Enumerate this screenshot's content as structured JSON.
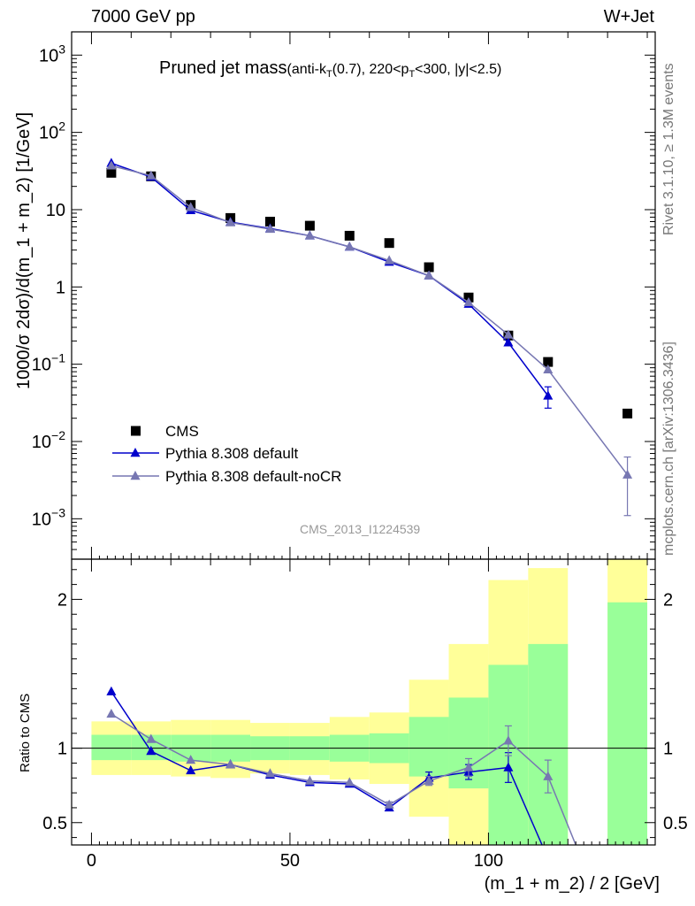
{
  "header": {
    "left": "7000 GeV pp",
    "right": "W+Jet"
  },
  "side": {
    "rivet": "Rivet 3.1.10, ≥ 1.3M events",
    "mcplots": "mcplots.cern.ch [arXiv:1306.3436]"
  },
  "chart_data": [
    {
      "type": "scatter",
      "title_main": "Pruned jet mass",
      "title_sub": "(anti-k_T(0.7), 220<p_T<300, |y|<2.5)",
      "watermark": "CMS_2013_I1224539",
      "ylabel": "1000/σ 2dσ)/d(m_1 + m_2) [1/GeV]",
      "yscale": "log",
      "ylim": [
        0.0003,
        2000
      ],
      "xlim": [
        -5,
        142
      ],
      "ytick_labels": [
        {
          "mant": "10",
          "exp": "3",
          "v": 1000
        },
        {
          "mant": "10",
          "exp": "2",
          "v": 100
        },
        {
          "mant": "10",
          "exp": "",
          "v": 10
        },
        {
          "mant": "1",
          "exp": "",
          "v": 1
        },
        {
          "mant": "10",
          "exp": "−1",
          "v": 0.1
        },
        {
          "mant": "10",
          "exp": "−2",
          "v": 0.01
        },
        {
          "mant": "10",
          "exp": "−3",
          "v": 0.001
        }
      ],
      "legend_position": "bottom-left",
      "series": [
        {
          "name": "CMS",
          "color": "#000000",
          "marker": "square",
          "x": [
            5,
            15,
            25,
            35,
            45,
            55,
            65,
            75,
            85,
            95,
            105,
            115,
            135
          ],
          "y": [
            30,
            27,
            11.5,
            7.8,
            7.0,
            6.2,
            4.6,
            3.7,
            1.8,
            0.73,
            0.235,
            0.107,
            0.023
          ]
        },
        {
          "name": "Pythia 8.308 default",
          "color": "#0000cc",
          "marker": "triangle",
          "x": [
            5,
            15,
            25,
            35,
            45,
            55,
            65,
            75,
            85,
            95,
            105,
            115
          ],
          "y": [
            40,
            26.5,
            9.8,
            6.9,
            5.7,
            4.6,
            3.3,
            2.1,
            1.4,
            0.6,
            0.19,
            0.039
          ],
          "yerr": [
            0,
            0,
            0,
            0,
            0,
            0,
            0,
            0,
            0,
            0,
            0,
            0.012
          ]
        },
        {
          "name": "Pythia 8.308 default-noCR",
          "color": "#7777b2",
          "marker": "triangle",
          "x": [
            5,
            15,
            25,
            35,
            45,
            55,
            65,
            75,
            85,
            95,
            105,
            115,
            135
          ],
          "y": [
            37,
            27.5,
            10.7,
            6.8,
            5.6,
            4.6,
            3.3,
            2.2,
            1.4,
            0.63,
            0.24,
            0.085,
            0.0037
          ],
          "yerr": [
            0,
            0,
            0,
            0,
            0,
            0,
            0,
            0,
            0,
            0,
            0,
            0,
            0.0026
          ]
        }
      ]
    },
    {
      "type": "scatter",
      "ylabel": "Ratio to CMS",
      "xlabel": "(m_1 + m_2) / 2 [GeV]",
      "xlim": [
        -5,
        142
      ],
      "ylim": [
        0.35,
        2.27
      ],
      "xticks": [
        0,
        50,
        100
      ],
      "yticks": [
        0.5,
        1,
        2
      ],
      "reference": 1,
      "bands": [
        {
          "x0": 0,
          "x1": 10,
          "g_lo": 0.92,
          "g_hi": 1.09,
          "y_lo": 0.82,
          "y_hi": 1.18
        },
        {
          "x0": 10,
          "x1": 20,
          "g_lo": 0.92,
          "g_hi": 1.09,
          "y_lo": 0.82,
          "y_hi": 1.18
        },
        {
          "x0": 20,
          "x1": 30,
          "g_lo": 0.91,
          "g_hi": 1.09,
          "y_lo": 0.81,
          "y_hi": 1.19
        },
        {
          "x0": 30,
          "x1": 40,
          "g_lo": 0.91,
          "g_hi": 1.09,
          "y_lo": 0.8,
          "y_hi": 1.19
        },
        {
          "x0": 40,
          "x1": 50,
          "g_lo": 0.92,
          "g_hi": 1.08,
          "y_lo": 0.83,
          "y_hi": 1.17
        },
        {
          "x0": 50,
          "x1": 60,
          "g_lo": 0.92,
          "g_hi": 1.08,
          "y_lo": 0.82,
          "y_hi": 1.17
        },
        {
          "x0": 60,
          "x1": 70,
          "g_lo": 0.91,
          "g_hi": 1.09,
          "y_lo": 0.79,
          "y_hi": 1.21
        },
        {
          "x0": 70,
          "x1": 80,
          "g_lo": 0.9,
          "g_hi": 1.1,
          "y_lo": 0.76,
          "y_hi": 1.24
        },
        {
          "x0": 80,
          "x1": 90,
          "g_lo": 0.81,
          "g_hi": 1.21,
          "y_lo": 0.54,
          "y_hi": 1.46
        },
        {
          "x0": 90,
          "x1": 100,
          "g_lo": 0.73,
          "g_hi": 1.34,
          "y_lo": 0.35,
          "y_hi": 1.7
        },
        {
          "x0": 100,
          "x1": 110,
          "g_lo": 0.35,
          "g_hi": 1.56,
          "y_lo": 0.35,
          "y_hi": 2.13
        },
        {
          "x0": 110,
          "x1": 120,
          "g_lo": 0.35,
          "g_hi": 1.7,
          "y_lo": 0.35,
          "y_hi": 2.21
        },
        {
          "x0": 130,
          "x1": 140,
          "g_lo": 0.35,
          "g_hi": 1.98,
          "y_lo": 0.35,
          "y_hi": 2.27
        }
      ],
      "series": [
        {
          "name": "Pythia 8.308 default",
          "color": "#0000cc",
          "x": [
            5,
            15,
            25,
            35,
            45,
            55,
            65,
            75,
            85,
            95,
            105
          ],
          "y": [
            1.38,
            0.98,
            0.85,
            0.89,
            0.82,
            0.77,
            0.76,
            0.6,
            0.8,
            0.84,
            0.87
          ],
          "yerr": [
            0,
            0,
            0,
            0,
            0,
            0,
            0,
            0.02,
            0.04,
            0.05,
            0.1
          ],
          "tail_x": [
            105,
            113.5
          ],
          "tail_y": [
            0.87,
            0.35
          ]
        },
        {
          "name": "Pythia 8.308 default-noCR",
          "color": "#7777b2",
          "x": [
            5,
            15,
            25,
            35,
            45,
            55,
            65,
            75,
            85,
            95,
            105,
            115
          ],
          "y": [
            1.23,
            1.06,
            0.92,
            0.89,
            0.83,
            0.78,
            0.77,
            0.62,
            0.78,
            0.87,
            1.05,
            0.81
          ],
          "yerr": [
            0,
            0,
            0,
            0,
            0,
            0,
            0,
            0.02,
            0.03,
            0.06,
            0.1,
            0.11
          ],
          "tail_x": [
            115,
            122
          ],
          "tail_y": [
            0.81,
            0.35
          ]
        }
      ]
    }
  ]
}
